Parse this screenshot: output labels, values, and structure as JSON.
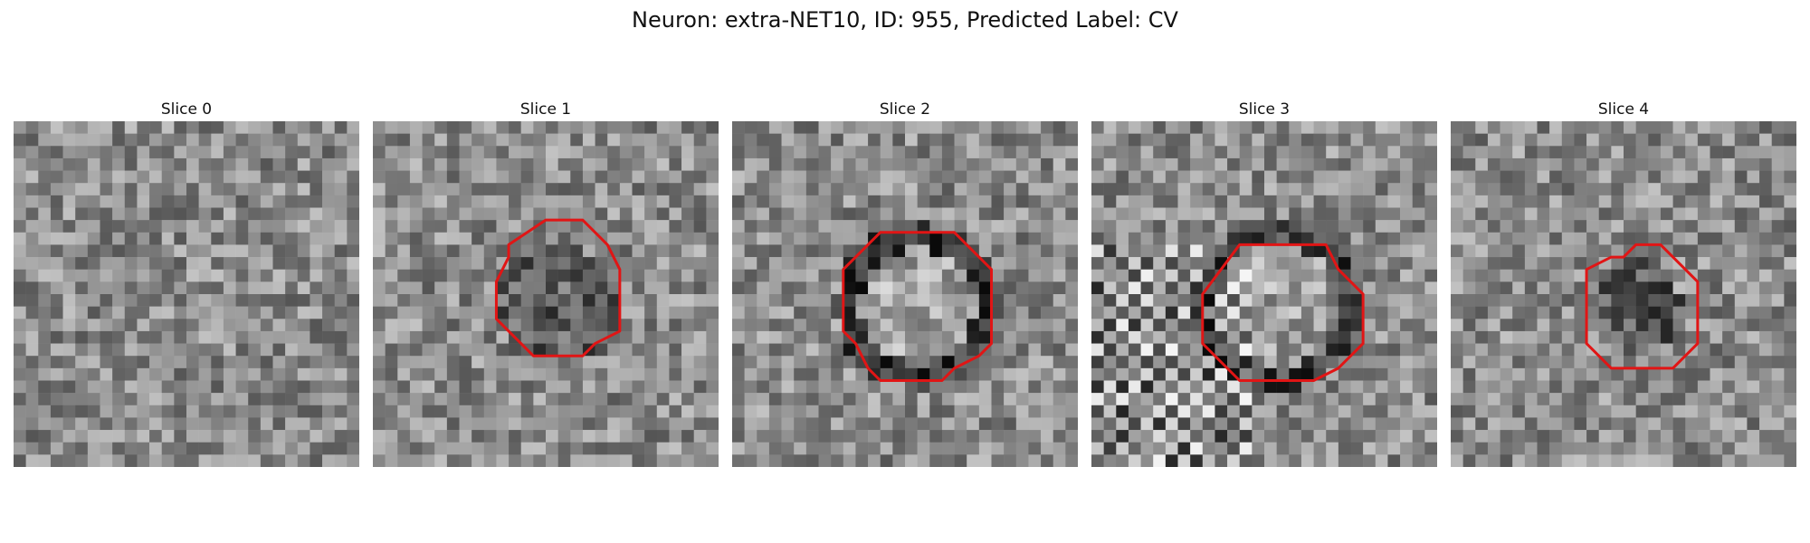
{
  "figure": {
    "title": "Neuron: extra-NET10, ID: 955, Predicted Label: CV"
  },
  "panels": [
    {
      "title": "Slice 0",
      "contour": null
    },
    {
      "title": "Slice 1",
      "contour": [
        [
          14,
          8
        ],
        [
          17,
          8
        ],
        [
          19,
          10
        ],
        [
          20,
          12
        ],
        [
          20,
          17
        ],
        [
          18,
          18
        ],
        [
          17,
          19
        ],
        [
          13,
          19
        ],
        [
          11,
          17
        ],
        [
          10,
          16
        ],
        [
          10,
          13
        ],
        [
          11,
          11
        ],
        [
          11,
          10
        ]
      ]
    },
    {
      "title": "Slice 2",
      "contour": [
        [
          11,
          10
        ],
        [
          12,
          9
        ],
        [
          18,
          9
        ],
        [
          20,
          11
        ],
        [
          21,
          12
        ],
        [
          21,
          18
        ],
        [
          20,
          19
        ],
        [
          18,
          20
        ],
        [
          17,
          21
        ],
        [
          12,
          21
        ],
        [
          11,
          20
        ],
        [
          10,
          18
        ],
        [
          9,
          17
        ],
        [
          9,
          12
        ]
      ]
    },
    {
      "title": "Slice 3",
      "contour": [
        [
          12,
          10
        ],
        [
          19,
          10
        ],
        [
          20,
          12
        ],
        [
          21,
          13
        ],
        [
          22,
          14
        ],
        [
          22,
          18
        ],
        [
          20,
          20
        ],
        [
          18,
          21
        ],
        [
          12,
          21
        ],
        [
          9,
          18
        ],
        [
          9,
          14
        ]
      ]
    },
    {
      "title": "Slice 4",
      "contour": [
        [
          13,
          11
        ],
        [
          14,
          11
        ],
        [
          15,
          10
        ],
        [
          17,
          10
        ],
        [
          20,
          13
        ],
        [
          20,
          18
        ],
        [
          18,
          20
        ],
        [
          13,
          20
        ],
        [
          11,
          18
        ],
        [
          11,
          12
        ]
      ]
    }
  ],
  "style": {
    "contour_color": "#e11515"
  }
}
